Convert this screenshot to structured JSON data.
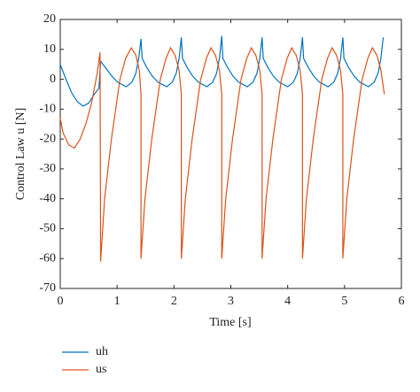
{
  "chart_data": {
    "type": "line",
    "xlabel": "Time [s]",
    "ylabel": "Control Law u [N]",
    "xlim": [
      0,
      6
    ],
    "xticks": [
      0,
      1,
      2,
      3,
      4,
      5,
      6
    ],
    "ylim": [
      -70,
      20
    ],
    "yticks": [
      -70,
      -60,
      -50,
      -40,
      -30,
      -20,
      -10,
      0,
      10,
      20
    ],
    "grid": false,
    "legend": "bottom-left",
    "series": [
      {
        "name": "uh",
        "color": "#0072bd",
        "x": [
          0,
          0.1,
          0.2,
          0.3,
          0.4,
          0.5,
          0.6,
          0.68,
          0.71,
          0.81,
          0.91,
          1.01,
          1.16,
          1.26,
          1.33,
          1.38,
          1.42,
          1.44,
          1.52,
          1.62,
          1.72,
          1.87,
          1.97,
          2.04,
          2.09,
          2.13,
          2.15,
          2.23,
          2.33,
          2.43,
          2.58,
          2.68,
          2.75,
          2.8,
          2.84,
          2.86,
          2.94,
          3.04,
          3.14,
          3.29,
          3.39,
          3.46,
          3.51,
          3.55,
          3.57,
          3.65,
          3.75,
          3.85,
          4.0,
          4.1,
          4.17,
          4.22,
          4.26,
          4.28,
          4.36,
          4.46,
          4.56,
          4.71,
          4.81,
          4.88,
          4.93,
          4.97,
          4.99,
          5.07,
          5.17,
          5.27,
          5.42,
          5.52,
          5.59,
          5.64,
          5.68
        ],
        "values": [
          5,
          0,
          -4.5,
          -7.5,
          -9,
          -8,
          -5,
          -3,
          6,
          3.5,
          1,
          -1,
          -2.5,
          -1,
          2,
          7,
          13.5,
          7,
          4,
          1,
          -1,
          -2.5,
          -1,
          2,
          7,
          14,
          7,
          4,
          1,
          -1,
          -2.5,
          -1,
          2,
          7,
          14.5,
          7,
          4,
          1,
          -1,
          -2.5,
          -1,
          2,
          7,
          14,
          7,
          4,
          1,
          -1,
          -2.5,
          -1,
          2,
          7,
          14,
          7,
          4,
          1,
          -1,
          -2.5,
          -1,
          2,
          7,
          14,
          7,
          4,
          1,
          -1,
          -2.5,
          -1,
          2,
          7,
          14
        ]
      },
      {
        "name": "us",
        "color": "#d95319",
        "x": [
          0,
          0.05,
          0.15,
          0.25,
          0.35,
          0.45,
          0.55,
          0.65,
          0.7,
          0.71,
          0.78,
          0.9,
          1.05,
          1.15,
          1.25,
          1.33,
          1.39,
          1.42,
          1.42,
          1.49,
          1.61,
          1.76,
          1.86,
          1.94,
          2.02,
          2.09,
          2.13,
          2.13,
          2.2,
          2.32,
          2.47,
          2.57,
          2.65,
          2.73,
          2.8,
          2.84,
          2.84,
          2.91,
          3.03,
          3.18,
          3.28,
          3.36,
          3.44,
          3.51,
          3.55,
          3.55,
          3.62,
          3.74,
          3.89,
          3.99,
          4.07,
          4.15,
          4.22,
          4.26,
          4.26,
          4.33,
          4.45,
          4.6,
          4.7,
          4.78,
          4.86,
          4.93,
          4.97,
          4.97,
          5.04,
          5.16,
          5.31,
          5.41,
          5.49,
          5.57,
          5.64,
          5.7
        ],
        "values": [
          -13,
          -18,
          -22,
          -23,
          -20,
          -15,
          -8,
          2,
          9,
          -61,
          -40,
          -20,
          0,
          7,
          10.5,
          8,
          3,
          -5,
          -60,
          -40,
          -20,
          0,
          7,
          10.5,
          8,
          3,
          -5,
          -60,
          -40,
          -20,
          0,
          7,
          10.5,
          8,
          3,
          -5,
          -60,
          -40,
          -20,
          0,
          7,
          10.5,
          8,
          3,
          -5,
          -60,
          -40,
          -20,
          0,
          7,
          10.5,
          8,
          3,
          -5,
          -60,
          -40,
          -20,
          0,
          7,
          10.5,
          8,
          3,
          -5,
          -60,
          -40,
          -20,
          0,
          7,
          10.5,
          8,
          3,
          -5
        ]
      }
    ]
  }
}
